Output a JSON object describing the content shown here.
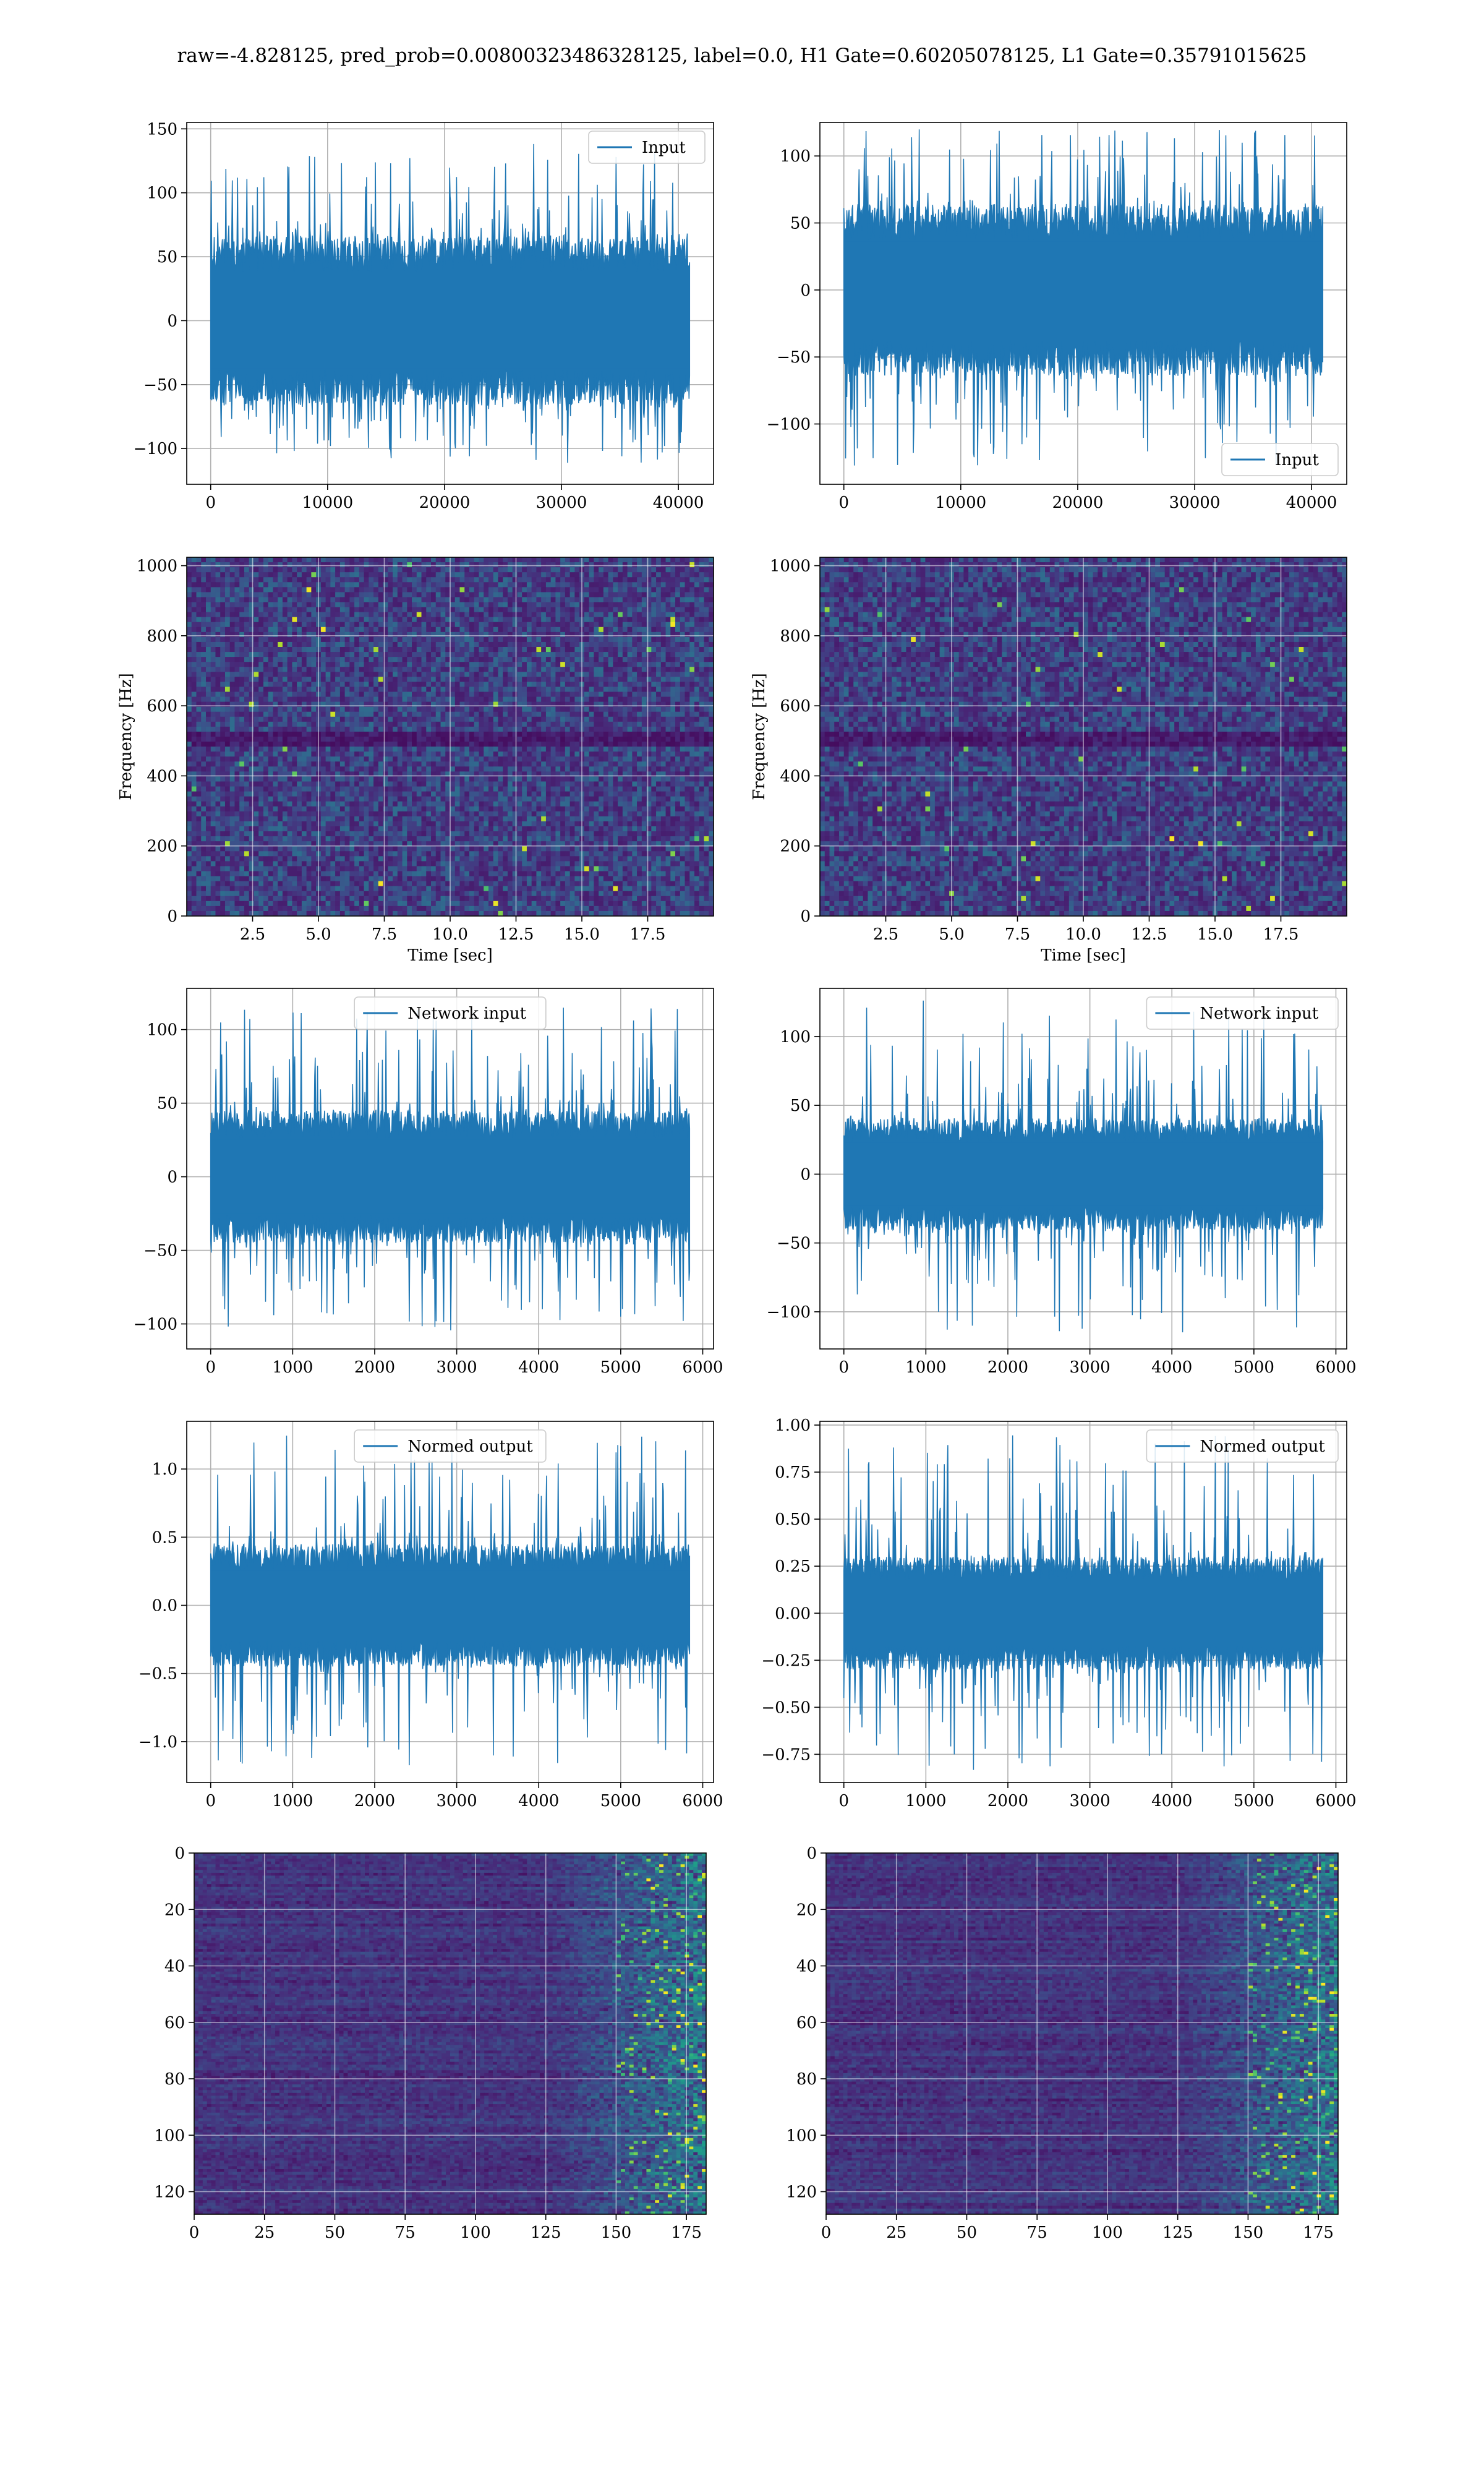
{
  "figure": {
    "title": "raw=-4.828125, pred_prob=0.00800323486328125, label=0.0, H1 Gate=0.60205078125, L1 Gate=0.35791015625"
  },
  "colors": {
    "line": "#1f77b4",
    "grid": "#b0b0b0",
    "axes": "#000000"
  },
  "chart_data": [
    {
      "id": "h1-input",
      "type": "line",
      "x_range": [
        0,
        40960
      ],
      "xlim": [
        -2048,
        43008
      ],
      "ylim": [
        -128,
        155
      ],
      "xticks": [
        0,
        10000,
        20000,
        30000,
        40000
      ],
      "yticks": [
        -100,
        -50,
        0,
        50,
        100,
        150
      ],
      "xtick_labels": [
        "0",
        "10000",
        "20000",
        "30000",
        "40000"
      ],
      "ytick_labels": [
        "−100",
        "−50",
        "0",
        "50",
        "100",
        "150"
      ],
      "envelope": {
        "typical_max": 62,
        "typical_min": -62,
        "peak_max": 140,
        "peak_min": -113
      },
      "legend": {
        "label": "Input",
        "loc": "upper right"
      },
      "grid": true
    },
    {
      "id": "l1-input",
      "type": "line",
      "x_range": [
        0,
        40960
      ],
      "xlim": [
        -2048,
        43008
      ],
      "ylim": [
        -145,
        125
      ],
      "xticks": [
        0,
        10000,
        20000,
        30000,
        40000
      ],
      "yticks": [
        -100,
        -50,
        0,
        50,
        100
      ],
      "xtick_labels": [
        "0",
        "10000",
        "20000",
        "30000",
        "40000"
      ],
      "ytick_labels": [
        "−100",
        "−50",
        "0",
        "50",
        "100"
      ],
      "envelope": {
        "typical_max": 60,
        "typical_min": -60,
        "peak_max": 120,
        "peak_min": -132
      },
      "legend": {
        "label": "Input",
        "loc": "lower right"
      },
      "grid": true
    },
    {
      "id": "h1-spectrogram",
      "type": "heatmap",
      "xlim": [
        0,
        20
      ],
      "ylim": [
        0,
        1024
      ],
      "xticks": [
        2.5,
        5.0,
        7.5,
        10.0,
        12.5,
        15.0,
        17.5
      ],
      "yticks": [
        0,
        200,
        400,
        600,
        800,
        1000
      ],
      "xtick_labels": [
        "2.5",
        "5.0",
        "7.5",
        "10.0",
        "12.5",
        "15.0",
        "17.5"
      ],
      "ytick_labels": [
        "0",
        "200",
        "400",
        "600",
        "800",
        "1000"
      ],
      "xlabel": "Time [sec]",
      "ylabel": "Frequency [Hz]",
      "colormap": "viridis",
      "grid": true
    },
    {
      "id": "l1-spectrogram",
      "type": "heatmap",
      "xlim": [
        0,
        20
      ],
      "ylim": [
        0,
        1024
      ],
      "xticks": [
        2.5,
        5.0,
        7.5,
        10.0,
        12.5,
        15.0,
        17.5
      ],
      "yticks": [
        0,
        200,
        400,
        600,
        800,
        1000
      ],
      "xtick_labels": [
        "2.5",
        "5.0",
        "7.5",
        "10.0",
        "12.5",
        "15.0",
        "17.5"
      ],
      "ytick_labels": [
        "0",
        "200",
        "400",
        "600",
        "800",
        "1000"
      ],
      "xlabel": "Time [sec]",
      "ylabel": "Frequency [Hz]",
      "colormap": "viridis",
      "grid": true
    },
    {
      "id": "h1-network-input",
      "type": "line",
      "x_range": [
        0,
        5840
      ],
      "xlim": [
        -292,
        6132
      ],
      "ylim": [
        -117,
        128
      ],
      "xticks": [
        0,
        1000,
        2000,
        3000,
        4000,
        5000,
        6000
      ],
      "yticks": [
        -100,
        -50,
        0,
        50,
        100
      ],
      "xtick_labels": [
        "0",
        "1000",
        "2000",
        "3000",
        "4000",
        "5000",
        "6000"
      ],
      "ytick_labels": [
        "−100",
        "−50",
        "0",
        "50",
        "100"
      ],
      "envelope": {
        "typical_max": 42,
        "typical_min": -42,
        "peak_max": 115,
        "peak_min": -105
      },
      "legend": {
        "label": "Network input",
        "loc": "upper center"
      },
      "grid": true
    },
    {
      "id": "l1-network-input",
      "type": "line",
      "x_range": [
        0,
        5840
      ],
      "xlim": [
        -292,
        6132
      ],
      "ylim": [
        -127,
        135
      ],
      "xticks": [
        0,
        1000,
        2000,
        3000,
        4000,
        5000,
        6000
      ],
      "yticks": [
        -100,
        -50,
        0,
        50,
        100
      ],
      "xtick_labels": [
        "0",
        "1000",
        "2000",
        "3000",
        "4000",
        "5000",
        "6000"
      ],
      "ytick_labels": [
        "−100",
        "−50",
        "0",
        "50",
        "100"
      ],
      "envelope": {
        "typical_max": 38,
        "typical_min": -38,
        "peak_max": 127,
        "peak_min": -115
      },
      "legend": {
        "label": "Network input",
        "loc": "upper right"
      },
      "grid": true
    },
    {
      "id": "h1-normed-output",
      "type": "line",
      "x_range": [
        0,
        5840
      ],
      "xlim": [
        -292,
        6132
      ],
      "ylim": [
        -1.3,
        1.35
      ],
      "xticks": [
        0,
        1000,
        2000,
        3000,
        4000,
        5000,
        6000
      ],
      "yticks": [
        -1.0,
        -0.5,
        0.0,
        0.5,
        1.0
      ],
      "xtick_labels": [
        "0",
        "1000",
        "2000",
        "3000",
        "4000",
        "5000",
        "6000"
      ],
      "ytick_labels": [
        "−1.0",
        "−0.5",
        "0.0",
        "0.5",
        "1.0"
      ],
      "envelope": {
        "typical_max": 0.42,
        "typical_min": -0.42,
        "peak_max": 1.25,
        "peak_min": -1.18
      },
      "legend": {
        "label": "Normed output",
        "loc": "upper center"
      },
      "grid": true
    },
    {
      "id": "l1-normed-output",
      "type": "line",
      "x_range": [
        0,
        5840
      ],
      "xlim": [
        -292,
        6132
      ],
      "ylim": [
        -0.9,
        1.02
      ],
      "xticks": [
        0,
        1000,
        2000,
        3000,
        4000,
        5000,
        6000
      ],
      "yticks": [
        -0.75,
        -0.5,
        -0.25,
        0.0,
        0.25,
        0.5,
        0.75,
        1.0
      ],
      "xtick_labels": [
        "0",
        "1000",
        "2000",
        "3000",
        "4000",
        "5000",
        "6000"
      ],
      "ytick_labels": [
        "−0.75",
        "−0.50",
        "−0.25",
        "0.00",
        "0.25",
        "0.50",
        "0.75",
        "1.00"
      ],
      "envelope": {
        "typical_max": 0.28,
        "typical_min": -0.28,
        "peak_max": 0.95,
        "peak_min": -0.85
      },
      "legend": {
        "label": "Normed output",
        "loc": "upper right"
      },
      "grid": true
    },
    {
      "id": "h1-features",
      "type": "heatmap",
      "xlim": [
        0,
        182
      ],
      "ylim": [
        128,
        0
      ],
      "xticks": [
        0,
        25,
        50,
        75,
        100,
        125,
        150,
        175
      ],
      "yticks": [
        0,
        20,
        40,
        60,
        80,
        100,
        120
      ],
      "xtick_labels": [
        "0",
        "25",
        "50",
        "75",
        "100",
        "125",
        "150",
        "175"
      ],
      "ytick_labels": [
        "0",
        "20",
        "40",
        "60",
        "80",
        "100",
        "120"
      ],
      "colormap": "viridis",
      "grid": true
    },
    {
      "id": "l1-features",
      "type": "heatmap",
      "xlim": [
        0,
        182
      ],
      "ylim": [
        128,
        0
      ],
      "xticks": [
        0,
        25,
        50,
        75,
        100,
        125,
        150,
        175
      ],
      "yticks": [
        0,
        20,
        40,
        60,
        80,
        100,
        120
      ],
      "xtick_labels": [
        "0",
        "25",
        "50",
        "75",
        "100",
        "125",
        "150",
        "175"
      ],
      "ytick_labels": [
        "0",
        "20",
        "40",
        "60",
        "80",
        "100",
        "120"
      ],
      "colormap": "viridis",
      "grid": true
    }
  ]
}
